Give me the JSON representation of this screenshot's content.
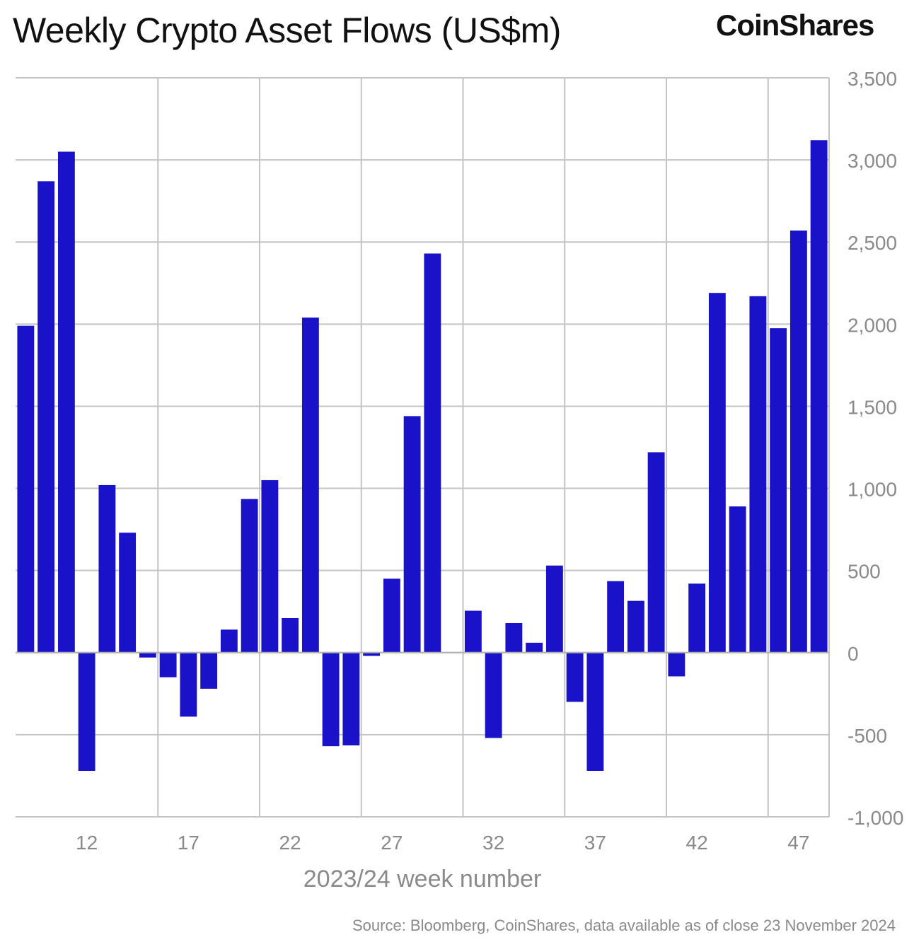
{
  "title": "Weekly Crypto Asset Flows (US$m)",
  "brand": "CoinShares",
  "source": "Source: Bloomberg, CoinShares, data available as of close 23 November 2024",
  "colors": {
    "bar": "#1a12c8",
    "grid": "#c4c4c4",
    "tick": "#8a8a8a"
  },
  "chart_data": {
    "type": "bar",
    "xlabel": "2023/24 week number",
    "ylabel": "",
    "x_tick_labels": [
      "12",
      "17",
      "22",
      "27",
      "32",
      "37",
      "42",
      "47"
    ],
    "y_tick_labels": [
      "3,500",
      "3,000",
      "2,500",
      "2,000",
      "1,500",
      "1,000",
      "500",
      "0",
      "-500",
      "-1,000"
    ],
    "ylim": [
      -1000,
      3500
    ],
    "y_axis_position": "right",
    "grid": true,
    "series": [
      {
        "values": [
          {
            "week": 9,
            "value": 1990
          },
          {
            "week": 10,
            "value": 2870
          },
          {
            "week": 11,
            "value": 3050
          },
          {
            "week": 12,
            "value": -720
          },
          {
            "week": 13,
            "value": 1020
          },
          {
            "week": 14,
            "value": 730
          },
          {
            "week": 15,
            "value": -30
          },
          {
            "week": 16,
            "value": -150
          },
          {
            "week": 17,
            "value": -390
          },
          {
            "week": 18,
            "value": -220
          },
          {
            "week": 19,
            "value": 140
          },
          {
            "week": 20,
            "value": 935
          },
          {
            "week": 21,
            "value": 1050
          },
          {
            "week": 22,
            "value": 210
          },
          {
            "week": 23,
            "value": 2040
          },
          {
            "week": 24,
            "value": -570
          },
          {
            "week": 25,
            "value": -565
          },
          {
            "week": 26,
            "value": -20
          },
          {
            "week": 27,
            "value": 450
          },
          {
            "week": 28,
            "value": 1440
          },
          {
            "week": 29,
            "value": 2430
          },
          {
            "week": 31,
            "value": 255
          },
          {
            "week": 32,
            "value": -520
          },
          {
            "week": 33,
            "value": 180
          },
          {
            "week": 34,
            "value": 60
          },
          {
            "week": 35,
            "value": 530
          },
          {
            "week": 36,
            "value": -300
          },
          {
            "week": 37,
            "value": -720
          },
          {
            "week": 38,
            "value": 435
          },
          {
            "week": 39,
            "value": 315
          },
          {
            "week": 40,
            "value": 1220
          },
          {
            "week": 41,
            "value": -145
          },
          {
            "week": 42,
            "value": 420
          },
          {
            "week": 43,
            "value": 2190
          },
          {
            "week": 44,
            "value": 890
          },
          {
            "week": 45,
            "value": 2170
          },
          {
            "week": 46,
            "value": 1975
          },
          {
            "week": 47,
            "value": 2570
          },
          {
            "week": 48,
            "value": 3120
          }
        ]
      }
    ]
  }
}
